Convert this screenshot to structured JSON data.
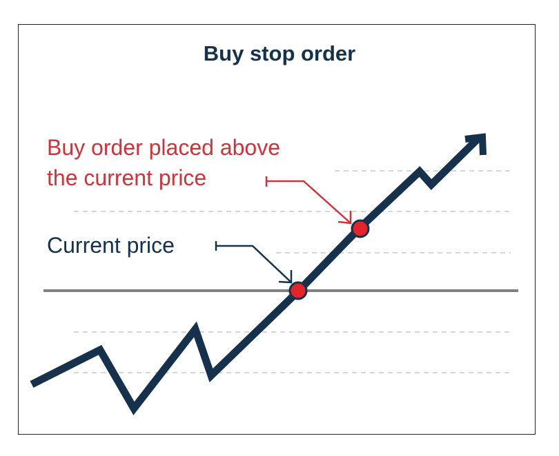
{
  "title": "Buy stop order",
  "annotations": {
    "buy_order_line1": "Buy order placed above",
    "buy_order_line2": "the current price",
    "current_price": "Current price"
  },
  "colors": {
    "navy": "#15314b",
    "red": "#d0323a",
    "marker": "#e3242b",
    "current_price_line": "#808080",
    "grid_dashed": "#bdbdbd"
  }
}
